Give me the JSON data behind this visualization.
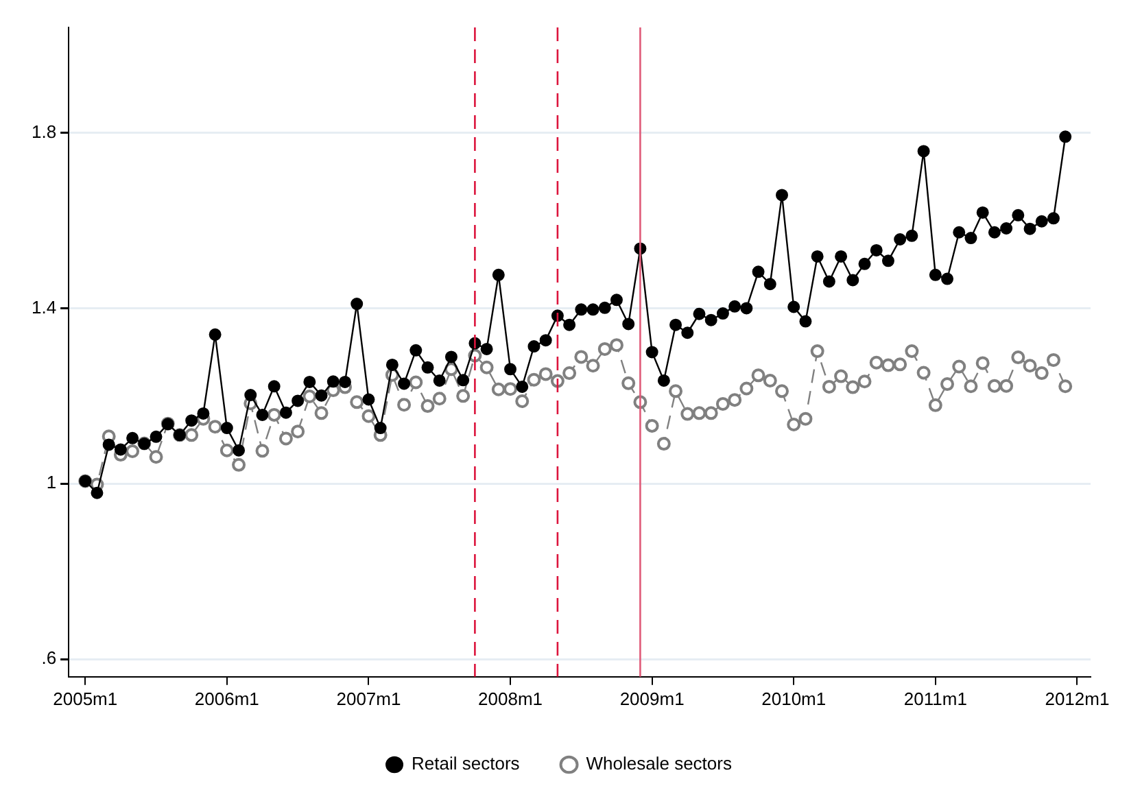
{
  "chart_data": {
    "type": "line",
    "x": [
      "2005-01",
      "2005-02",
      "2005-03",
      "2005-04",
      "2005-05",
      "2005-06",
      "2005-07",
      "2005-08",
      "2005-09",
      "2005-10",
      "2005-11",
      "2005-12",
      "2006-01",
      "2006-02",
      "2006-03",
      "2006-04",
      "2006-05",
      "2006-06",
      "2006-07",
      "2006-08",
      "2006-09",
      "2006-10",
      "2006-11",
      "2006-12",
      "2007-01",
      "2007-02",
      "2007-03",
      "2007-04",
      "2007-05",
      "2007-06",
      "2007-07",
      "2007-08",
      "2007-09",
      "2007-10",
      "2007-11",
      "2007-12",
      "2008-01",
      "2008-02",
      "2008-03",
      "2008-04",
      "2008-05",
      "2008-06",
      "2008-07",
      "2008-08",
      "2008-09",
      "2008-10",
      "2008-11",
      "2008-12",
      "2009-01",
      "2009-02",
      "2009-03",
      "2009-04",
      "2009-05",
      "2009-06",
      "2009-07",
      "2009-08",
      "2009-09",
      "2009-10",
      "2009-11",
      "2009-12",
      "2010-01",
      "2010-02",
      "2010-03",
      "2010-04",
      "2010-05",
      "2010-06",
      "2010-07",
      "2010-08",
      "2010-09",
      "2010-10",
      "2010-11",
      "2010-12",
      "2011-01",
      "2011-02",
      "2011-03",
      "2011-04",
      "2011-05",
      "2011-06",
      "2011-07",
      "2011-08",
      "2011-09",
      "2011-10",
      "2011-11",
      "2011-12"
    ],
    "series": [
      {
        "name": "Retail sectors",
        "color": "#000000",
        "line_style": "solid",
        "values": [
          1.006,
          0.979,
          1.089,
          1.078,
          1.104,
          1.091,
          1.107,
          1.136,
          1.111,
          1.144,
          1.16,
          1.34,
          1.127,
          1.076,
          1.202,
          1.157,
          1.222,
          1.162,
          1.189,
          1.232,
          1.201,
          1.233,
          1.232,
          1.41,
          1.192,
          1.127,
          1.271,
          1.228,
          1.304,
          1.265,
          1.235,
          1.289,
          1.236,
          1.32,
          1.307,
          1.476,
          1.261,
          1.221,
          1.313,
          1.327,
          1.383,
          1.362,
          1.397,
          1.397,
          1.401,
          1.419,
          1.364,
          1.536,
          1.3,
          1.235,
          1.362,
          1.344,
          1.387,
          1.373,
          1.388,
          1.404,
          1.4,
          1.483,
          1.455,
          1.658,
          1.403,
          1.37,
          1.518,
          1.461,
          1.518,
          1.464,
          1.501,
          1.532,
          1.508,
          1.557,
          1.565,
          1.758,
          1.476,
          1.467,
          1.573,
          1.56,
          1.618,
          1.573,
          1.582,
          1.612,
          1.581,
          1.598,
          1.605,
          1.791
        ]
      },
      {
        "name": "Wholesale sectors",
        "color": "#808080",
        "line_style": "dashed",
        "values": [
          1.006,
          0.998,
          1.108,
          1.066,
          1.074,
          1.092,
          1.061,
          1.137,
          1.111,
          1.111,
          1.148,
          1.13,
          1.076,
          1.043,
          1.183,
          1.075,
          1.157,
          1.103,
          1.119,
          1.199,
          1.161,
          1.213,
          1.22,
          1.186,
          1.154,
          1.111,
          1.248,
          1.18,
          1.231,
          1.177,
          1.194,
          1.261,
          1.2,
          1.292,
          1.265,
          1.215,
          1.216,
          1.188,
          1.237,
          1.25,
          1.234,
          1.252,
          1.289,
          1.269,
          1.307,
          1.316,
          1.229,
          1.186,
          1.132,
          1.091,
          1.211,
          1.159,
          1.161,
          1.161,
          1.182,
          1.191,
          1.217,
          1.247,
          1.235,
          1.211,
          1.135,
          1.148,
          1.302,
          1.221,
          1.245,
          1.22,
          1.233,
          1.276,
          1.27,
          1.272,
          1.302,
          1.253,
          1.179,
          1.227,
          1.267,
          1.222,
          1.275,
          1.223,
          1.223,
          1.288,
          1.269,
          1.252,
          1.282,
          1.222
        ]
      }
    ],
    "xlim": [
      "2004-11-19",
      "2012-02-05"
    ],
    "xticks": [
      {
        "value": "2005-01",
        "label": "2005m1"
      },
      {
        "value": "2006-01",
        "label": "2006m1"
      },
      {
        "value": "2007-01",
        "label": "2007m1"
      },
      {
        "value": "2008-01",
        "label": "2008m1"
      },
      {
        "value": "2009-01",
        "label": "2009m1"
      },
      {
        "value": "2010-01",
        "label": "2010m1"
      },
      {
        "value": "2011-01",
        "label": "2011m1"
      },
      {
        "value": "2012-01",
        "label": "2012m1"
      }
    ],
    "ylim": [
      0.56,
      2.04
    ],
    "yticks": [
      {
        "value": 0.6,
        "label": ".6"
      },
      1,
      1.4,
      1.8
    ],
    "ref_lines": [
      {
        "axis": "x",
        "value": "2007-10",
        "color": "#dc143c",
        "line_style": "dashed"
      },
      {
        "axis": "x",
        "value": "2008-05",
        "color": "#dc143c",
        "line_style": "dashed"
      },
      {
        "axis": "x",
        "value": "2008-12",
        "color": "#e05a78",
        "line_style": "solid"
      }
    ],
    "grid": "y",
    "legend": "bottom",
    "marker": "circle"
  }
}
